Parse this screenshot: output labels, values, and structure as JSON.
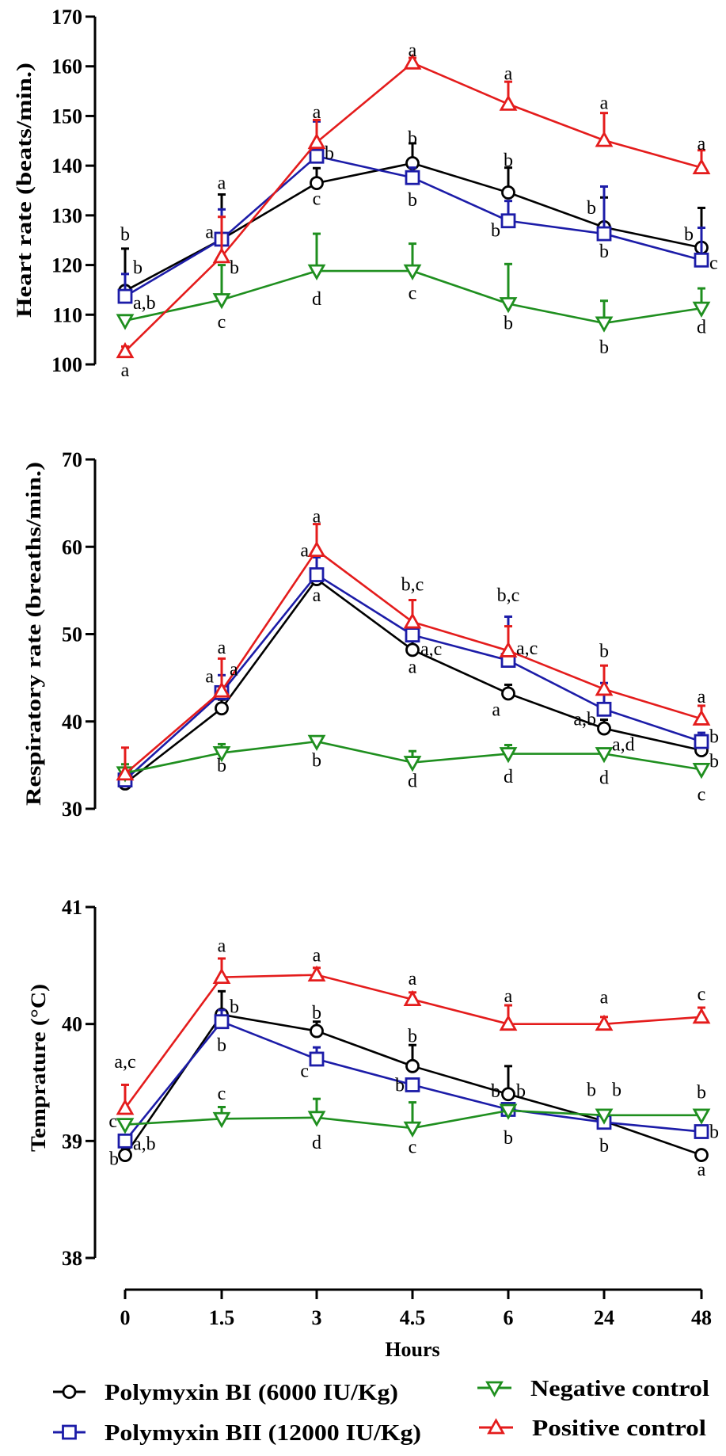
{
  "chart_data": {
    "type": "line",
    "x": [
      "0",
      "1.5",
      "3",
      "4.5",
      "6",
      "24",
      "48"
    ],
    "xlabel": "Hours",
    "x_scale": "categorical",
    "error_bars": "upper",
    "grid": false,
    "legend_placement": "bottom",
    "legend": [
      {
        "name": "Polymyxin BI (6000 IU/Kg)",
        "color": "#000000",
        "marker": "circle"
      },
      {
        "name": "Polymyxin BII (12000 IU/Kg)",
        "color": "#1c1ca8",
        "marker": "square"
      },
      {
        "name": "Negative control",
        "color": "#1f8f1f",
        "marker": "triangle-down"
      },
      {
        "name": "Positive control",
        "color": "#e41c1c",
        "marker": "triangle-up"
      }
    ],
    "panels": [
      {
        "ylabel": "Heart rate (beats/min.)",
        "ylim": [
          100,
          170
        ],
        "yticks": [
          "100",
          "110",
          "120",
          "130",
          "140",
          "150",
          "160",
          "170"
        ],
        "series": [
          {
            "name": "Polymyxin BI (6000 IU/Kg)",
            "values": [
              114.8,
              125.2,
              136.5,
              140.5,
              134.6,
              127.6,
              123.5
            ],
            "err": [
              8.5,
              9,
              3,
              4,
              5,
              6,
              8
            ]
          },
          {
            "name": "Polymyxin BII (12000 IU/Kg)",
            "values": [
              113.7,
              125.2,
              141.9,
              137.6,
              128.9,
              126.3,
              121.0
            ],
            "err": [
              4.5,
              6,
              7,
              2,
              4,
              9.5,
              6.5
            ]
          },
          {
            "name": "Negative control",
            "values": [
              108.8,
              113.0,
              118.8,
              118.8,
              112.2,
              108.3,
              111.3
            ],
            "err": [
              1,
              7,
              7.5,
              5.5,
              8,
              4.5,
              4
            ]
          },
          {
            "name": "Positive control",
            "values": [
              102.6,
              121.7,
              144.7,
              160.7,
              152.4,
              145.1,
              139.6
            ],
            "err": [
              1,
              8,
              4.5,
              1,
              4.5,
              5.5,
              3.5
            ]
          }
        ],
        "annotations": [
          {
            "x": "0",
            "y": 126.2,
            "text": "b",
            "side": "center"
          },
          {
            "x": "0",
            "y": 119.5,
            "text": "b",
            "side": "right"
          },
          {
            "x": "0",
            "y": 112.4,
            "text": "a,b",
            "side": "right"
          },
          {
            "x": "0",
            "y": 98.9,
            "text": "a",
            "side": "center"
          },
          {
            "x": "1.5",
            "y": 136.6,
            "text": "a",
            "side": "center"
          },
          {
            "x": "1.5",
            "y": 126.7,
            "text": "a",
            "side": "left"
          },
          {
            "x": "1.5",
            "y": 119.5,
            "text": "b",
            "side": "right"
          },
          {
            "x": "1.5",
            "y": 108.6,
            "text": "c",
            "side": "center"
          },
          {
            "x": "3",
            "y": 150.9,
            "text": "a",
            "side": "center"
          },
          {
            "x": "3",
            "y": 142.6,
            "text": "b",
            "side": "right"
          },
          {
            "x": "3",
            "y": 133.4,
            "text": "c",
            "side": "center"
          },
          {
            "x": "3",
            "y": 113.2,
            "text": "d",
            "side": "center"
          },
          {
            "x": "4.5",
            "y": 163.3,
            "text": "a",
            "side": "center"
          },
          {
            "x": "4.5",
            "y": 145.6,
            "text": "b",
            "side": "center"
          },
          {
            "x": "4.5",
            "y": 133.2,
            "text": "b",
            "side": "center"
          },
          {
            "x": "4.5",
            "y": 114.4,
            "text": "c",
            "side": "center"
          },
          {
            "x": "6",
            "y": 158.6,
            "text": "a",
            "side": "center"
          },
          {
            "x": "6",
            "y": 141.1,
            "text": "b",
            "side": "center"
          },
          {
            "x": "6",
            "y": 127.0,
            "text": "b",
            "side": "left"
          },
          {
            "x": "6",
            "y": 108.4,
            "text": "b",
            "side": "center"
          },
          {
            "x": "24",
            "y": 152.7,
            "text": "a",
            "side": "center"
          },
          {
            "x": "24",
            "y": 131.6,
            "text": "b",
            "side": "left"
          },
          {
            "x": "24",
            "y": 122.8,
            "text": "b",
            "side": "center"
          },
          {
            "x": "24",
            "y": 103.5,
            "text": "b",
            "side": "center"
          },
          {
            "x": "48",
            "y": 144.5,
            "text": "a",
            "side": "center"
          },
          {
            "x": "48",
            "y": 126.2,
            "text": "b",
            "side": "left"
          },
          {
            "x": "48",
            "y": 120.5,
            "text": "c",
            "side": "right"
          },
          {
            "x": "48",
            "y": 107.6,
            "text": "d",
            "side": "center"
          }
        ]
      },
      {
        "ylabel": "Respiratory rate (breaths/min.)",
        "ylim": [
          30,
          70
        ],
        "yticks": [
          "30",
          "40",
          "50",
          "60",
          "70"
        ],
        "series": [
          {
            "name": "Polymyxin BI (6000 IU/Kg)",
            "values": [
              32.9,
              41.5,
              56.3,
              48.2,
              43.2,
              39.2,
              36.7
            ],
            "err": [
              0.5,
              1,
              1,
              1,
              1,
              1,
              0.5
            ]
          },
          {
            "name": "Polymyxin BII (12000 IU/Kg)",
            "values": [
              33.3,
              43.3,
              56.8,
              49.9,
              47.0,
              41.4,
              37.7
            ],
            "err": [
              0.5,
              2,
              2,
              1,
              5,
              3,
              1
            ]
          },
          {
            "name": "Negative control",
            "values": [
              34.1,
              36.4,
              37.7,
              35.3,
              36.3,
              36.3,
              34.5
            ],
            "err": [
              1,
              1,
              0.5,
              1.3,
              1,
              0.5,
              0.5
            ]
          },
          {
            "name": "Positive control",
            "values": [
              34.0,
              43.5,
              59.6,
              51.4,
              48.1,
              43.7,
              40.3
            ],
            "err": [
              3,
              3.7,
              3,
              2.5,
              2.8,
              2.7,
              1.5
            ]
          }
        ],
        "annotations": [
          {
            "x": "1.5",
            "y": 48.5,
            "text": "a",
            "side": "center"
          },
          {
            "x": "1.5",
            "y": 45.2,
            "text": "a",
            "side": "left"
          },
          {
            "x": "1.5",
            "y": 46.0,
            "text": "a",
            "side": "right"
          },
          {
            "x": "1.5",
            "y": 35.0,
            "text": "b",
            "side": "center"
          },
          {
            "x": "3",
            "y": 63.5,
            "text": "a",
            "side": "center"
          },
          {
            "x": "3",
            "y": 59.6,
            "text": "a",
            "side": "left"
          },
          {
            "x": "3",
            "y": 54.5,
            "text": "a",
            "side": "center"
          },
          {
            "x": "3",
            "y": 35.6,
            "text": "b",
            "side": "center"
          },
          {
            "x": "4.5",
            "y": 55.7,
            "text": "b,c",
            "side": "center"
          },
          {
            "x": "4.5",
            "y": 48.3,
            "text": "a,c",
            "side": "right"
          },
          {
            "x": "4.5",
            "y": 46.3,
            "text": "a",
            "side": "center"
          },
          {
            "x": "4.5",
            "y": 33.2,
            "text": "d",
            "side": "center"
          },
          {
            "x": "6",
            "y": 54.5,
            "text": "b,c",
            "side": "center"
          },
          {
            "x": "6",
            "y": 48.4,
            "text": "a,c",
            "side": "right"
          },
          {
            "x": "6",
            "y": 41.4,
            "text": "a",
            "side": "left"
          },
          {
            "x": "6",
            "y": 33.7,
            "text": "d",
            "side": "center"
          },
          {
            "x": "24",
            "y": 48.1,
            "text": "b",
            "side": "center"
          },
          {
            "x": "24",
            "y": 40.3,
            "text": "a,b",
            "side": "left"
          },
          {
            "x": "24",
            "y": 37.4,
            "text": "a,d",
            "side": "right"
          },
          {
            "x": "24",
            "y": 33.6,
            "text": "d",
            "side": "center"
          },
          {
            "x": "48",
            "y": 42.9,
            "text": "a",
            "side": "center"
          },
          {
            "x": "48",
            "y": 38.3,
            "text": "b",
            "side": "right"
          },
          {
            "x": "48",
            "y": 35.5,
            "text": "b",
            "side": "right"
          },
          {
            "x": "48",
            "y": 31.7,
            "text": "c",
            "side": "center"
          }
        ]
      },
      {
        "ylabel": "Temprature (°C)",
        "ylim": [
          38,
          41
        ],
        "yticks": [
          "38",
          "39",
          "40",
          "41"
        ],
        "series": [
          {
            "name": "Polymyxin BI (6000 IU/Kg)",
            "values": [
              38.88,
              40.08,
              39.94,
              39.64,
              39.4,
              39.17,
              38.88
            ],
            "err": [
              0.05,
              0.2,
              0.08,
              0.18,
              0.24,
              0.05,
              0.03
            ]
          },
          {
            "name": "Polymyxin BII (12000 IU/Kg)",
            "values": [
              39.0,
              40.02,
              39.7,
              39.48,
              39.27,
              39.16,
              39.08
            ],
            "err": [
              0.03,
              0.1,
              0.1,
              0.05,
              0.03,
              0.03,
              0.03
            ]
          },
          {
            "name": "Negative control",
            "values": [
              39.14,
              39.19,
              39.2,
              39.11,
              39.26,
              39.22,
              39.22
            ],
            "err": [
              0.03,
              0.1,
              0.16,
              0.22,
              0.03,
              0.03,
              0.03
            ]
          },
          {
            "name": "Positive control",
            "values": [
              39.28,
              40.4,
              40.42,
              40.21,
              40.0,
              40.0,
              40.06
            ],
            "err": [
              0.2,
              0.16,
              0.06,
              0.06,
              0.16,
              0.06,
              0.08
            ]
          }
        ],
        "annotations": [
          {
            "x": "0",
            "y": 39.68,
            "text": "a,c",
            "side": "center"
          },
          {
            "x": "0",
            "y": 39.17,
            "text": "c",
            "side": "left"
          },
          {
            "x": "0",
            "y": 38.98,
            "text": "a,b",
            "side": "right"
          },
          {
            "x": "0",
            "y": 38.85,
            "text": "b",
            "side": "leftbelow"
          },
          {
            "x": "1.5",
            "y": 40.67,
            "text": "a",
            "side": "center"
          },
          {
            "x": "1.5",
            "y": 40.15,
            "text": "b",
            "side": "right"
          },
          {
            "x": "1.5",
            "y": 39.82,
            "text": "b",
            "side": "center"
          },
          {
            "x": "1.5",
            "y": 39.41,
            "text": "c",
            "side": "center"
          },
          {
            "x": "3",
            "y": 40.59,
            "text": "a",
            "side": "center"
          },
          {
            "x": "3",
            "y": 40.1,
            "text": "b",
            "side": "center"
          },
          {
            "x": "3",
            "y": 39.6,
            "text": "c",
            "side": "left"
          },
          {
            "x": "3",
            "y": 38.99,
            "text": "d",
            "side": "center"
          },
          {
            "x": "4.5",
            "y": 40.39,
            "text": "a",
            "side": "center"
          },
          {
            "x": "4.5",
            "y": 39.9,
            "text": "b",
            "side": "center"
          },
          {
            "x": "4.5",
            "y": 39.48,
            "text": "b",
            "side": "left"
          },
          {
            "x": "4.5",
            "y": 38.95,
            "text": "c",
            "side": "center"
          },
          {
            "x": "6",
            "y": 40.24,
            "text": "a",
            "side": "center"
          },
          {
            "x": "6",
            "y": 39.43,
            "text": "b",
            "side": "left"
          },
          {
            "x": "6",
            "y": 39.43,
            "text": "b",
            "side": "right"
          },
          {
            "x": "6",
            "y": 39.03,
            "text": "b",
            "side": "center"
          },
          {
            "x": "24",
            "y": 40.23,
            "text": "a",
            "side": "center"
          },
          {
            "x": "24",
            "y": 39.44,
            "text": "b",
            "side": "left"
          },
          {
            "x": "24",
            "y": 39.44,
            "text": "b",
            "side": "right"
          },
          {
            "x": "24",
            "y": 38.96,
            "text": "b",
            "side": "center"
          },
          {
            "x": "48",
            "y": 40.26,
            "text": "c",
            "side": "center"
          },
          {
            "x": "48",
            "y": 39.42,
            "text": "b",
            "side": "center"
          },
          {
            "x": "48",
            "y": 39.08,
            "text": "b",
            "side": "right"
          },
          {
            "x": "48",
            "y": 38.76,
            "text": "a",
            "side": "center"
          }
        ]
      }
    ]
  }
}
